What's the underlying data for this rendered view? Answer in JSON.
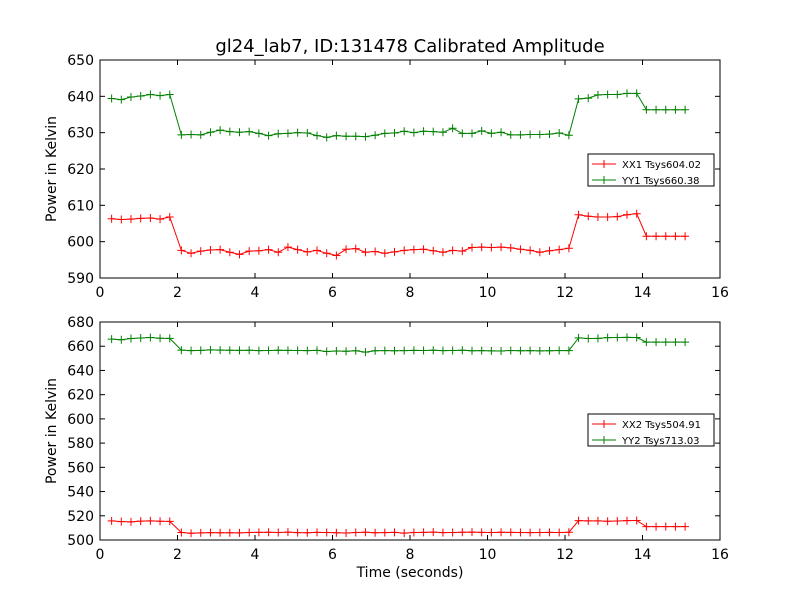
{
  "chart_data": [
    {
      "type": "line",
      "title": "gl24_lab7, ID:131478 Calibrated Amplitude",
      "xlabel": "",
      "ylabel": "Power in Kelvin",
      "xlim": [
        0,
        16
      ],
      "ylim": [
        590,
        650
      ],
      "x_ticks": [
        0,
        2,
        4,
        6,
        8,
        10,
        12,
        14,
        16
      ],
      "y_ticks": [
        590,
        600,
        610,
        620,
        630,
        640,
        650
      ],
      "grid": false,
      "legend_position": "right",
      "marker": "plus",
      "x": [
        0.3,
        0.55,
        0.8,
        1.05,
        1.3,
        1.55,
        1.8,
        2.1,
        2.35,
        2.6,
        2.85,
        3.1,
        3.35,
        3.6,
        3.85,
        4.1,
        4.35,
        4.6,
        4.85,
        5.1,
        5.35,
        5.6,
        5.85,
        6.1,
        6.35,
        6.6,
        6.85,
        7.1,
        7.35,
        7.6,
        7.85,
        8.1,
        8.35,
        8.6,
        8.85,
        9.1,
        9.35,
        9.6,
        9.85,
        10.1,
        10.35,
        10.6,
        10.85,
        11.1,
        11.35,
        11.6,
        11.85,
        12.1,
        12.35,
        12.6,
        12.85,
        13.1,
        13.35,
        13.6,
        13.85,
        14.1,
        14.35,
        14.6,
        14.85,
        15.1
      ],
      "series": [
        {
          "name": "XX1 Tsys604.02",
          "color": "#ff0000",
          "values": [
            606.3,
            606.1,
            606.2,
            606.4,
            606.5,
            606.2,
            606.8,
            597.6,
            596.8,
            597.4,
            597.7,
            597.8,
            597.1,
            596.5,
            597.4,
            597.5,
            597.8,
            597.1,
            598.5,
            597.8,
            597.2,
            597.6,
            596.8,
            596.2,
            597.9,
            598.1,
            597.1,
            597.3,
            596.8,
            597.2,
            597.6,
            597.8,
            597.9,
            597.5,
            597.1,
            597.6,
            597.4,
            598.4,
            598.5,
            598.4,
            598.5,
            598.3,
            597.9,
            597.6,
            597.1,
            597.5,
            597.8,
            598.2,
            607.4,
            607.0,
            606.8,
            606.8,
            606.9,
            607.4,
            607.7,
            601.5,
            601.5,
            601.5,
            601.5,
            601.5
          ]
        },
        {
          "name": "YY1 Tsys660.38",
          "color": "#008000",
          "values": [
            639.4,
            639.1,
            639.8,
            640.1,
            640.5,
            640.2,
            640.5,
            629.4,
            629.5,
            629.4,
            630.1,
            630.7,
            630.3,
            630.1,
            630.3,
            629.8,
            629.2,
            629.7,
            629.8,
            630.0,
            629.9,
            629.2,
            628.7,
            629.2,
            629.0,
            629.0,
            628.9,
            629.3,
            629.8,
            629.9,
            630.4,
            630.0,
            630.4,
            630.3,
            630.1,
            631.2,
            629.8,
            629.8,
            630.5,
            629.8,
            630.1,
            629.4,
            629.4,
            629.5,
            629.5,
            629.6,
            629.9,
            629.3,
            639.3,
            639.5,
            640.4,
            640.5,
            640.5,
            640.8,
            640.8,
            636.3,
            636.3,
            636.3,
            636.3,
            636.3
          ]
        }
      ]
    },
    {
      "type": "line",
      "title": "",
      "xlabel": "Time (seconds)",
      "ylabel": "Power in Kelvin",
      "xlim": [
        0,
        16
      ],
      "ylim": [
        500,
        680
      ],
      "x_ticks": [
        0,
        2,
        4,
        6,
        8,
        10,
        12,
        14,
        16
      ],
      "y_ticks": [
        500,
        520,
        540,
        560,
        580,
        600,
        620,
        640,
        660,
        680
      ],
      "grid": false,
      "legend_position": "right",
      "marker": "plus",
      "x": [
        0.3,
        0.55,
        0.8,
        1.05,
        1.3,
        1.55,
        1.8,
        2.1,
        2.35,
        2.6,
        2.85,
        3.1,
        3.35,
        3.6,
        3.85,
        4.1,
        4.35,
        4.6,
        4.85,
        5.1,
        5.35,
        5.6,
        5.85,
        6.1,
        6.35,
        6.6,
        6.85,
        7.1,
        7.35,
        7.6,
        7.85,
        8.1,
        8.35,
        8.6,
        8.85,
        9.1,
        9.35,
        9.6,
        9.85,
        10.1,
        10.35,
        10.6,
        10.85,
        11.1,
        11.35,
        11.6,
        11.85,
        12.1,
        12.35,
        12.6,
        12.85,
        13.1,
        13.35,
        13.6,
        13.85,
        14.1,
        14.35,
        14.6,
        14.85,
        15.1
      ],
      "series": [
        {
          "name": "XX2 Tsys504.91",
          "color": "#ff0000",
          "values": [
            515.8,
            515.2,
            515.0,
            515.6,
            515.8,
            515.5,
            515.4,
            506.2,
            505.6,
            505.9,
            506.1,
            506.0,
            506.0,
            505.9,
            506.2,
            506.3,
            506.4,
            506.2,
            506.5,
            506.1,
            506.0,
            506.3,
            506.2,
            506.0,
            505.8,
            506.2,
            506.4,
            506.0,
            506.1,
            506.3,
            505.7,
            506.2,
            506.3,
            506.5,
            506.1,
            506.2,
            506.4,
            506.5,
            506.3,
            506.2,
            506.4,
            506.3,
            506.2,
            506.1,
            506.2,
            506.3,
            506.2,
            506.4,
            516.0,
            515.8,
            515.8,
            515.5,
            515.7,
            516.0,
            516.1,
            511.0,
            511.0,
            511.0,
            511.0,
            511.0
          ]
        },
        {
          "name": "YY2 Tsys713.03",
          "color": "#008000",
          "values": [
            665.9,
            665.3,
            666.4,
            666.8,
            667.2,
            666.6,
            666.5,
            656.8,
            656.4,
            656.6,
            657.0,
            656.8,
            656.7,
            656.6,
            656.7,
            656.4,
            656.5,
            656.7,
            656.6,
            656.5,
            656.4,
            656.6,
            655.6,
            656.1,
            655.9,
            656.3,
            655.1,
            656.3,
            656.4,
            656.3,
            656.4,
            656.6,
            656.5,
            656.7,
            656.4,
            656.5,
            656.7,
            656.3,
            656.4,
            656.2,
            656.1,
            656.5,
            656.3,
            656.4,
            656.2,
            656.3,
            656.5,
            656.4,
            666.9,
            666.4,
            666.5,
            667.1,
            667.2,
            667.3,
            667.2,
            663.4,
            663.4,
            663.4,
            663.4,
            663.4
          ]
        }
      ]
    }
  ]
}
